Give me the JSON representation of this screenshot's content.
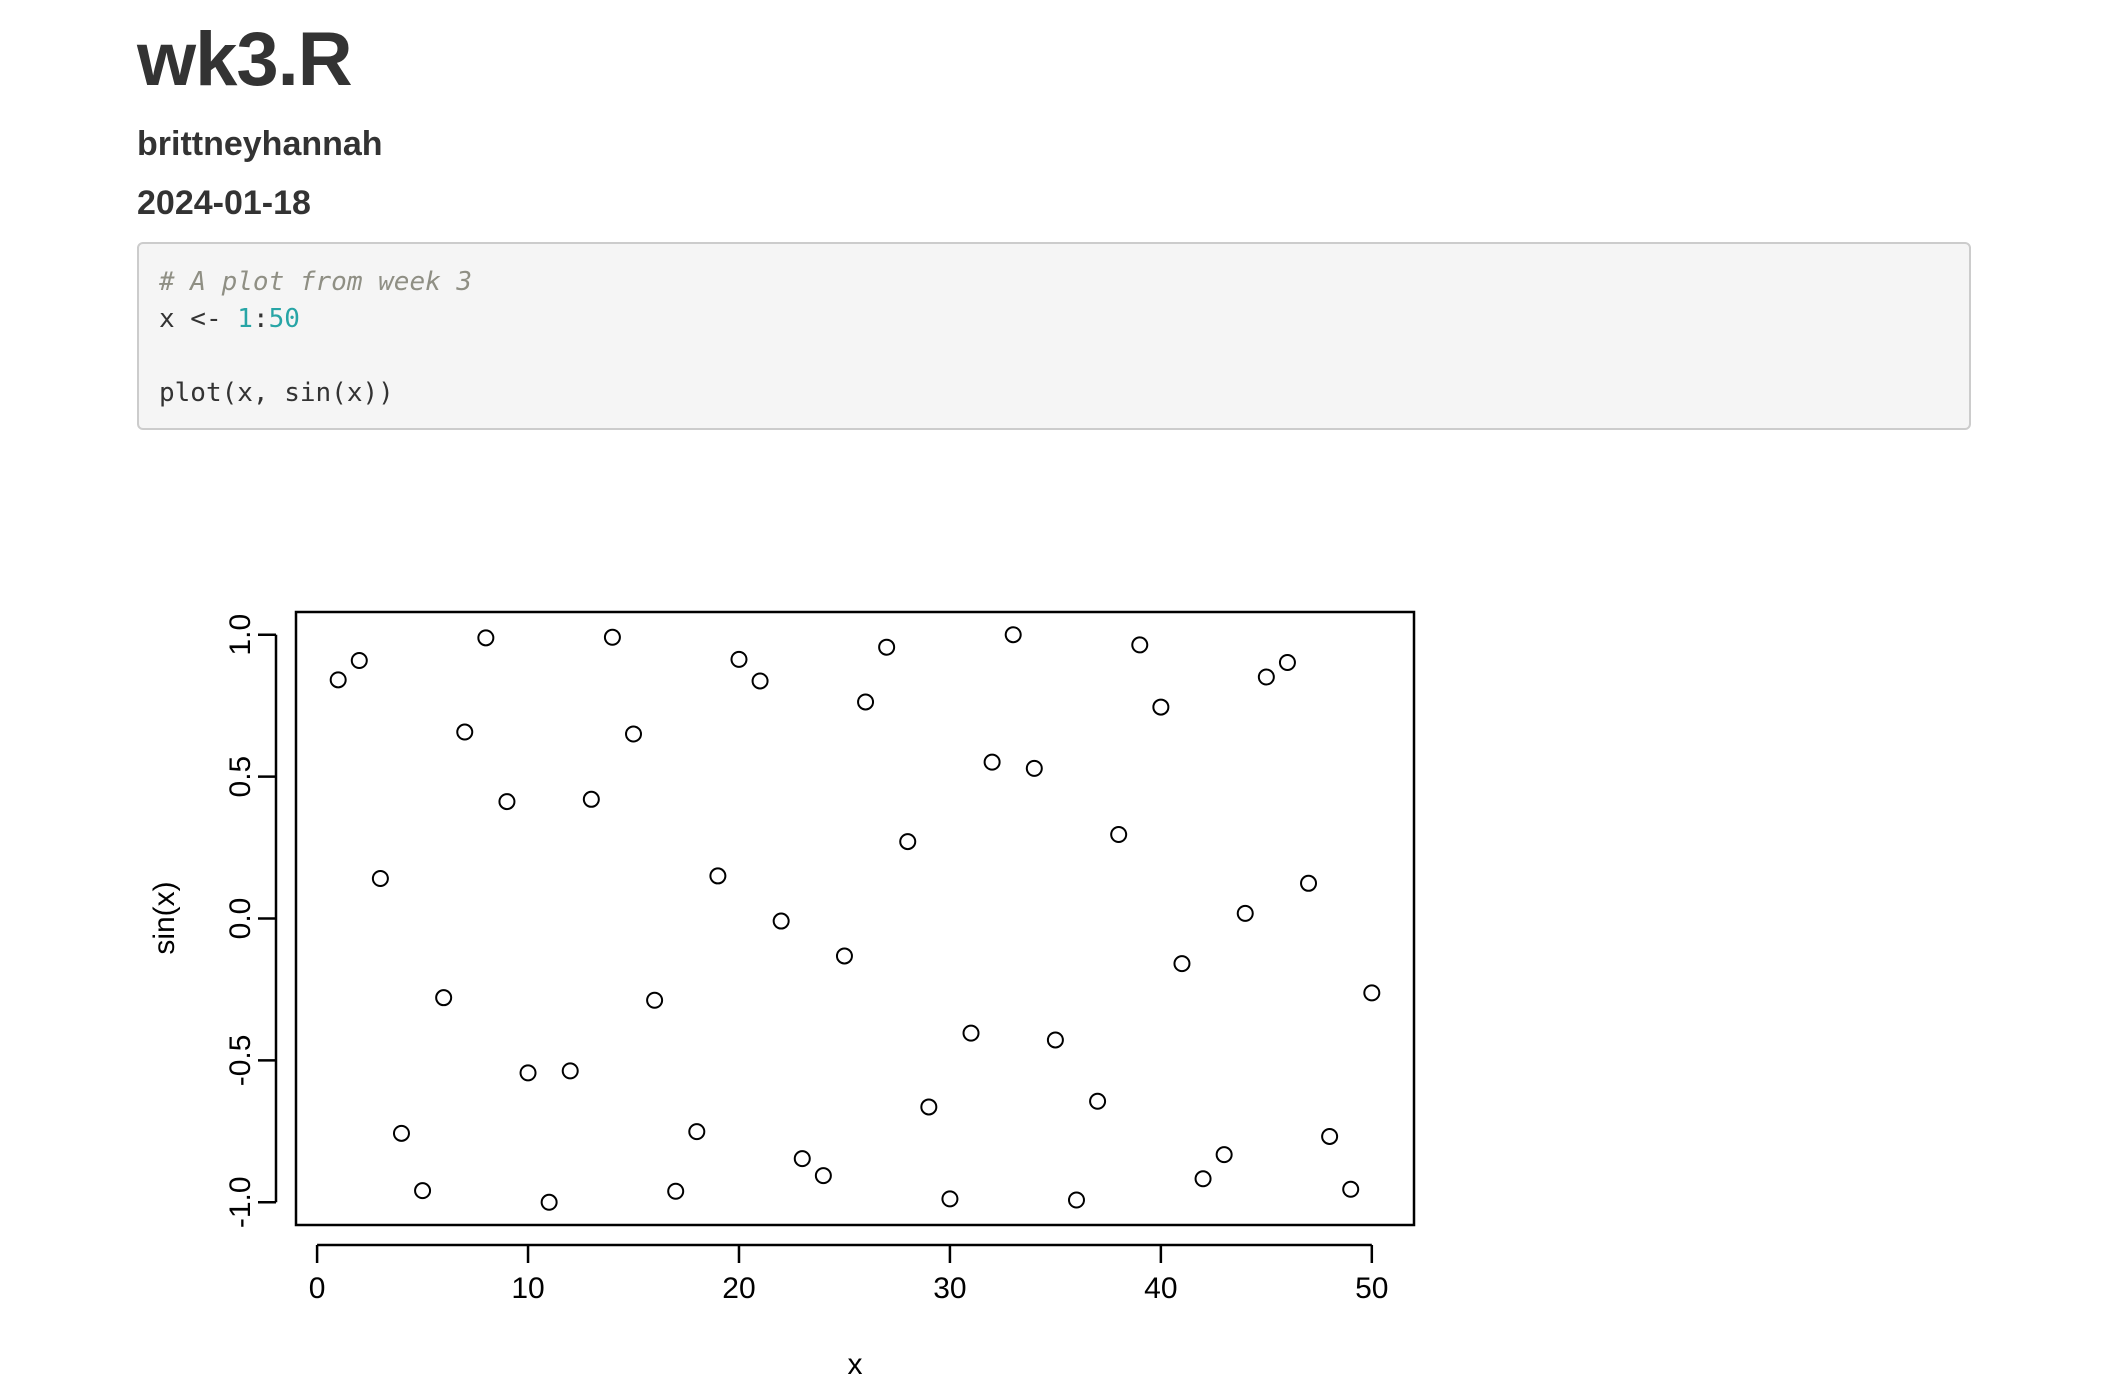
{
  "document": {
    "title": "wk3.R",
    "author": "brittneyhannah",
    "date": "2024-01-18"
  },
  "code": {
    "comment": "# A plot from week 3",
    "line2_var": "x <- ",
    "line2_start": "1",
    "line2_sep": ":",
    "line2_end": "50",
    "line4": "plot(x, sin(x))"
  },
  "chart_data": {
    "type": "scatter",
    "title": "",
    "xlabel": "x",
    "ylabel": "sin(x)",
    "xlim": [
      -1,
      52
    ],
    "ylim": [
      -1.08,
      1.08
    ],
    "xticks": [
      0,
      10,
      20,
      30,
      40,
      50
    ],
    "yticks": [
      -1.0,
      -0.5,
      0.0,
      0.5,
      1.0
    ],
    "xtick_labels": [
      "0",
      "10",
      "20",
      "30",
      "40",
      "50"
    ],
    "ytick_labels": [
      "-1.0",
      "-0.5",
      "0.0",
      "0.5",
      "1.0"
    ],
    "marker": "open-circle",
    "grid": false,
    "series": [
      {
        "x": [
          1,
          2,
          3,
          4,
          5,
          6,
          7,
          8,
          9,
          10,
          11,
          12,
          13,
          14,
          15,
          16,
          17,
          18,
          19,
          20,
          21,
          22,
          23,
          24,
          25,
          26,
          27,
          28,
          29,
          30,
          31,
          32,
          33,
          34,
          35,
          36,
          37,
          38,
          39,
          40,
          41,
          42,
          43,
          44,
          45,
          46,
          47,
          48,
          49,
          50
        ],
        "y": [
          0.841,
          0.909,
          0.141,
          -0.757,
          -0.959,
          -0.279,
          0.657,
          0.989,
          0.412,
          -0.544,
          -1.0,
          -0.537,
          0.42,
          0.991,
          0.65,
          -0.288,
          -0.961,
          -0.751,
          0.15,
          0.913,
          0.837,
          -0.009,
          -0.846,
          -0.906,
          -0.132,
          0.763,
          0.956,
          0.271,
          -0.664,
          -0.988,
          -0.404,
          0.551,
          1.0,
          0.529,
          -0.428,
          -0.992,
          -0.644,
          0.296,
          0.964,
          0.745,
          -0.159,
          -0.917,
          -0.832,
          0.018,
          0.851,
          0.902,
          0.124,
          -0.768,
          -0.954,
          -0.262
        ]
      }
    ]
  }
}
